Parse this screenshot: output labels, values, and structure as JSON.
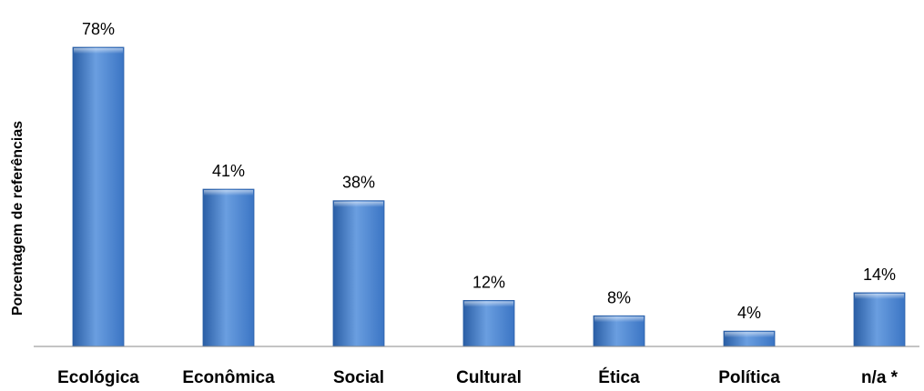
{
  "chart_data": {
    "type": "bar",
    "categories": [
      "Ecológica",
      "Econômica",
      "Social",
      "Cultural",
      "Ética",
      "Política",
      "n/a *"
    ],
    "values": [
      78,
      41,
      38,
      12,
      8,
      4,
      14
    ],
    "value_labels": [
      "78%",
      "41%",
      "38%",
      "12%",
      "8%",
      "4%",
      "14%"
    ],
    "title": "",
    "xlabel": "",
    "ylabel": "Porcentagem de referências",
    "ylim": [
      0,
      78
    ],
    "grid": false,
    "legend": "none",
    "bar_color": "#3b75c4",
    "bar_color_light": "#6a9ee0",
    "bar_color_dark": "#2a5ea5",
    "axis_color": "#888888"
  }
}
